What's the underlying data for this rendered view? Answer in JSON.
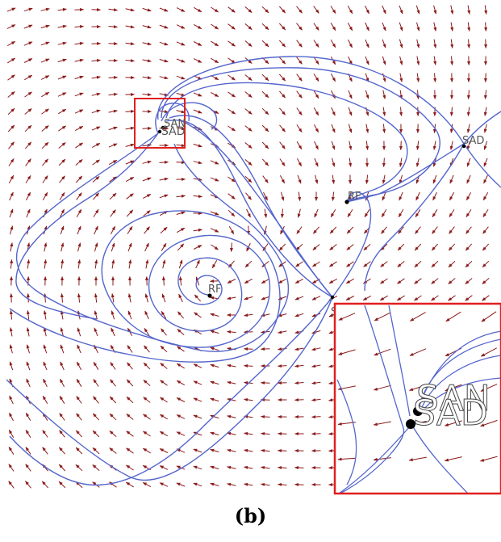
{
  "caption": "(b)",
  "colors": {
    "arrow": "#8b1a1a",
    "trajectory": "#5566cc",
    "highlight_box": "#e0201f",
    "label": "#555555",
    "point": "#000000"
  },
  "critical_points": [
    {
      "id": "rf-center",
      "label": "RF"
    },
    {
      "id": "rf-upper",
      "label": "RF"
    },
    {
      "id": "sad-right",
      "label": "SAD"
    },
    {
      "id": "sad-lower",
      "label": "SAD"
    },
    {
      "id": "sad-boxed",
      "label": "SAD"
    },
    {
      "id": "san-boxed",
      "label": "SAN"
    }
  ],
  "inset": {
    "labels": [
      "SAN",
      "SAD"
    ]
  }
}
